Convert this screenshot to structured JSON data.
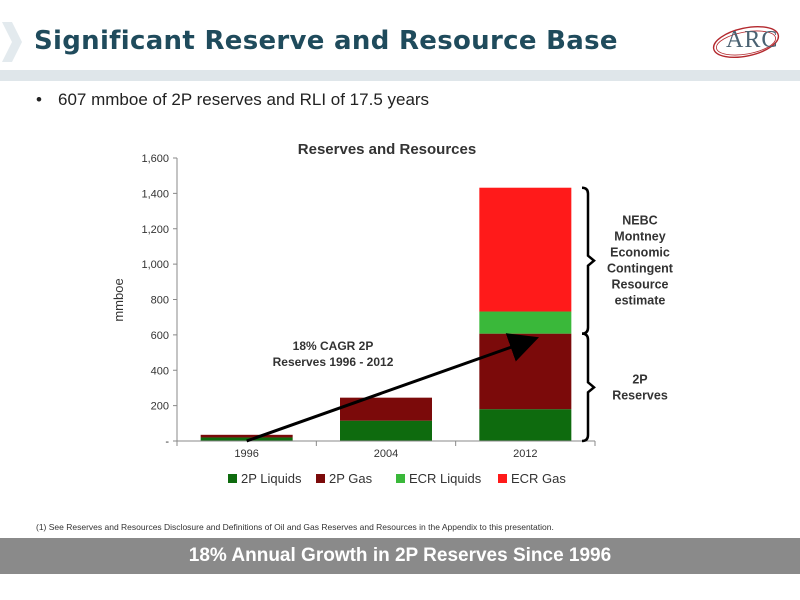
{
  "page": {
    "title": "Significant Reserve and Resource Base",
    "logo_text": "ARC",
    "bullet": "607 mmboe of 2P reserves and RLI of 17.5 years",
    "footnote": "(1)  See Reserves and Resources Disclosure and Definitions of Oil and Gas Reserves and Resources in the Appendix to this presentation.",
    "banner": "18% Annual Growth in 2P Reserves Since 1996"
  },
  "colors": {
    "title": "#1f4b5c",
    "banner": "#8a8a8a",
    "rule": "#dfe6ea"
  },
  "chart_data": {
    "type": "bar",
    "stacked": true,
    "title": "Reserves and Resources",
    "ylabel": "mmboe",
    "xlabel": "",
    "categories": [
      "1996",
      "2004",
      "2012"
    ],
    "ylim": [
      0,
      1600
    ],
    "yticks": [
      0,
      200,
      400,
      600,
      800,
      1000,
      1200,
      1400,
      1600
    ],
    "ytick_labels": [
      "-",
      "200",
      "400",
      "600",
      "800",
      "1,000",
      "1,200",
      "1,400",
      "1,600"
    ],
    "series": [
      {
        "name": "2P Liquids",
        "color": "#0e6b0e",
        "values": [
          20,
          115,
          180
        ]
      },
      {
        "name": "2P Gas",
        "color": "#7b0a0a",
        "values": [
          15,
          130,
          427
        ]
      },
      {
        "name": "ECR Liquids",
        "color": "#3ab83a",
        "values": [
          0,
          0,
          125
        ]
      },
      {
        "name": "ECR Gas",
        "color": "#ff1a1a",
        "values": [
          0,
          0,
          700
        ]
      }
    ],
    "legend_position": "bottom",
    "grid": false,
    "annotations": {
      "arrow_label": [
        "18% CAGR 2P",
        "Reserves 1996 - 2012"
      ],
      "arrow_from": {
        "x": "1996",
        "y": 0
      },
      "arrow_to": {
        "x": "2012",
        "y": 575
      },
      "upper_bracket": {
        "from": 607,
        "to": 1432,
        "label": [
          "NEBC",
          "Montney",
          "Economic",
          "Contingent",
          "Resource",
          "estimate"
        ]
      },
      "lower_bracket": {
        "from": 0,
        "to": 607,
        "label": [
          "2P",
          "Reserves"
        ]
      }
    }
  }
}
